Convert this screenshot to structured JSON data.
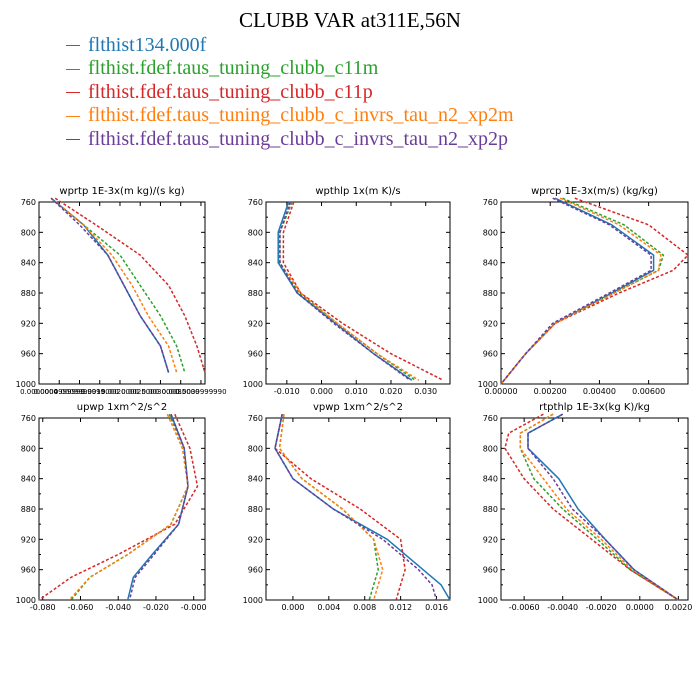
{
  "title": "CLUBB VAR at311E,56N",
  "colors": [
    "#1f77b4",
    "#2ca02c",
    "#d62728",
    "#ff7f0e",
    "#6a3d9a"
  ],
  "legend": [
    {
      "label": "flthist134.000f",
      "color": "#1f77b4"
    },
    {
      "label": "flthist.fdef.taus_tuning_clubb_c11m",
      "color": "#2ca02c"
    },
    {
      "label": "flthist.fdef.taus_tuning_clubb_c11p",
      "color": "#d62728"
    },
    {
      "label": "flthist.fdef.taus_tuning_clubb_c_invrs_tau_n2_xp2m",
      "color": "#ff7f0e"
    },
    {
      "label": "flthist.fdef.taus_tuning_clubb_c_invrs_tau_n2_xp2p",
      "color": "#6a3d9a"
    }
  ],
  "chart_data": [
    {
      "type": "line",
      "title": "wprtp  1E-3x(m kg)/(s kg)",
      "xlim": [
        0,
        0.0041
      ],
      "ylim": [
        760,
        1000
      ],
      "y_reversed": true,
      "xticks": [
        0,
        0.0005,
        0.001,
        0.0015,
        0.002,
        0.0025,
        0.003,
        0.0035,
        0.004
      ],
      "xticklabels": [
        "0.0000000",
        "0.0004999999",
        "0.0009999999",
        "0.0015000",
        "0.0020000",
        "0.0025000",
        "0.0030000",
        "0.0035000",
        "0.0039999990"
      ],
      "yticks": [
        760,
        800,
        840,
        880,
        920,
        960,
        1000
      ],
      "yticklabels": [
        "760",
        "800",
        "840",
        "880",
        "920",
        "960",
        "1000"
      ],
      "y": [
        755,
        790,
        830,
        870,
        910,
        950,
        985
      ],
      "series": [
        {
          "values": [
            0.0003,
            0.0011,
            0.0017,
            0.0021,
            0.0025,
            0.003,
            0.0032
          ]
        },
        {
          "values": [
            0.0003,
            0.0011,
            0.002,
            0.0025,
            0.003,
            0.0034,
            0.0036
          ],
          "dashed": true
        },
        {
          "values": [
            0.0004,
            0.0014,
            0.0025,
            0.0032,
            0.0036,
            0.0039,
            0.0041
          ],
          "dashed": true
        },
        {
          "values": [
            0.0003,
            0.0011,
            0.0018,
            0.0023,
            0.0027,
            0.0032,
            0.0034
          ],
          "dashed": true
        },
        {
          "values": [
            0.0003,
            0.001,
            0.0017,
            0.0021,
            0.0025,
            0.003,
            0.0032
          ],
          "dashed": true
        }
      ]
    },
    {
      "type": "line",
      "title": "wpthlp  1x(m K)/s",
      "xlim": [
        -0.016,
        0.037
      ],
      "ylim": [
        760,
        1000
      ],
      "y_reversed": true,
      "xticks": [
        -0.01,
        0,
        0.01,
        0.02,
        0.03
      ],
      "xticklabels": [
        "-0.010",
        "0.000",
        "0.010",
        "0.020",
        "0.030"
      ],
      "yticks": [
        760,
        800,
        840,
        880,
        920,
        960,
        1000
      ],
      "yticklabels": [
        "760",
        "800",
        "840",
        "880",
        "920",
        "960",
        "1000"
      ],
      "y": [
        760,
        800,
        840,
        880,
        920,
        960,
        995
      ],
      "series": [
        {
          "values": [
            -0.0095,
            -0.0125,
            -0.0125,
            -0.007,
            0.004,
            0.015,
            0.026
          ]
        },
        {
          "values": [
            -0.0085,
            -0.012,
            -0.012,
            -0.0065,
            0.0045,
            0.016,
            0.027
          ],
          "dashed": true
        },
        {
          "values": [
            -0.008,
            -0.011,
            -0.011,
            -0.006,
            0.006,
            0.02,
            0.035
          ],
          "dashed": true
        },
        {
          "values": [
            -0.009,
            -0.012,
            -0.012,
            -0.006,
            0.0045,
            0.016,
            0.028
          ],
          "dashed": true
        },
        {
          "values": [
            -0.009,
            -0.012,
            -0.012,
            -0.007,
            0.0035,
            0.015,
            0.0255
          ],
          "dashed": true
        }
      ]
    },
    {
      "type": "line",
      "title": "wprcp  1E-3x(m/s) (kg/kg)",
      "xlim": [
        0,
        0.0076
      ],
      "ylim": [
        760,
        1000
      ],
      "y_reversed": true,
      "xticks": [
        0,
        0.002,
        0.004,
        0.006
      ],
      "xticklabels": [
        "0.00000",
        "0.00200",
        "0.00400",
        "0.00600"
      ],
      "yticks": [
        760,
        800,
        840,
        880,
        920,
        960,
        1000
      ],
      "yticklabels": [
        "760",
        "800",
        "840",
        "880",
        "920",
        "960",
        "1000"
      ],
      "y": [
        755,
        790,
        830,
        850,
        880,
        920,
        960,
        1000
      ],
      "series": [
        {
          "values": [
            0.0022,
            0.0045,
            0.0062,
            0.0062,
            0.0045,
            0.0022,
            0.001,
            0.0
          ]
        },
        {
          "values": [
            0.0025,
            0.005,
            0.0066,
            0.0064,
            0.0046,
            0.0022,
            0.001,
            0.0
          ],
          "dashed": true
        },
        {
          "values": [
            0.003,
            0.006,
            0.0076,
            0.007,
            0.0048,
            0.0022,
            0.001,
            0.0
          ],
          "dashed": true
        },
        {
          "values": [
            0.0024,
            0.0048,
            0.0065,
            0.0064,
            0.0046,
            0.0022,
            0.001,
            0.0
          ],
          "dashed": true
        },
        {
          "values": [
            0.0021,
            0.0044,
            0.0061,
            0.0061,
            0.0044,
            0.0021,
            0.001,
            0.0
          ],
          "dashed": true
        }
      ]
    },
    {
      "type": "line",
      "title": "upwp  1xm^2/s^2",
      "xlim": [
        -0.082,
        0.006
      ],
      "ylim": [
        760,
        1000
      ],
      "y_reversed": true,
      "xticks": [
        -0.08,
        -0.06,
        -0.04,
        -0.02,
        0
      ],
      "xticklabels": [
        "-0.080",
        "-0.060",
        "-0.040",
        "-0.020",
        "-0.000"
      ],
      "yticks": [
        760,
        800,
        840,
        880,
        920,
        960,
        1000
      ],
      "yticklabels": [
        "760",
        "800",
        "840",
        "880",
        "920",
        "960",
        "1000"
      ],
      "y": [
        755,
        800,
        850,
        900,
        940,
        970,
        1000
      ],
      "series": [
        {
          "values": [
            -0.012,
            -0.005,
            -0.003,
            -0.008,
            -0.022,
            -0.032,
            -0.035
          ]
        },
        {
          "values": [
            -0.013,
            -0.005,
            -0.003,
            -0.012,
            -0.035,
            -0.055,
            -0.065
          ],
          "dashed": true
        },
        {
          "values": [
            -0.01,
            -0.002,
            0.002,
            -0.01,
            -0.04,
            -0.065,
            -0.082
          ],
          "dashed": true
        },
        {
          "values": [
            -0.014,
            -0.006,
            -0.003,
            -0.012,
            -0.035,
            -0.055,
            -0.066
          ],
          "dashed": true
        },
        {
          "values": [
            -0.012,
            -0.005,
            -0.003,
            -0.008,
            -0.021,
            -0.031,
            -0.034
          ],
          "dashed": true
        }
      ]
    },
    {
      "type": "line",
      "title": "vpwp  1xm^2/s^2",
      "xlim": [
        -0.003,
        0.0175
      ],
      "ylim": [
        760,
        1000
      ],
      "y_reversed": true,
      "xticks": [
        0,
        0.004,
        0.008,
        0.012,
        0.016
      ],
      "xticklabels": [
        "0.000",
        "0.004",
        "0.008",
        "0.012",
        "0.016"
      ],
      "yticks": [
        760,
        800,
        840,
        880,
        920,
        960,
        1000
      ],
      "yticklabels": [
        "760",
        "800",
        "840",
        "880",
        "920",
        "960",
        "1000"
      ],
      "y": [
        755,
        800,
        840,
        880,
        920,
        960,
        980,
        1000
      ],
      "series": [
        {
          "values": [
            -0.0012,
            -0.002,
            0.0,
            0.0045,
            0.0105,
            0.0145,
            0.0165,
            0.0175
          ]
        },
        {
          "values": [
            -0.001,
            -0.0015,
            0.001,
            0.0055,
            0.009,
            0.0095,
            0.009,
            0.0085
          ],
          "dashed": true
        },
        {
          "values": [
            -0.0012,
            -0.002,
            0.002,
            0.0075,
            0.012,
            0.0125,
            0.012,
            0.0115
          ],
          "dashed": true
        },
        {
          "values": [
            -0.001,
            -0.0015,
            0.001,
            0.0055,
            0.009,
            0.01,
            0.0095,
            0.009
          ],
          "dashed": true
        },
        {
          "values": [
            -0.0012,
            -0.002,
            0.0,
            0.0045,
            0.01,
            0.014,
            0.0155,
            0.016
          ],
          "dashed": true
        }
      ]
    },
    {
      "type": "line",
      "title": "rtpthlp  1E-3x(kg K)/kg",
      "xlim": [
        -0.0072,
        0.0025
      ],
      "ylim": [
        760,
        1000
      ],
      "y_reversed": true,
      "xticks": [
        -0.006,
        -0.004,
        -0.002,
        0,
        0.002
      ],
      "xticklabels": [
        "-0.0060",
        "-0.0040",
        "-0.0020",
        "0.0000",
        "0.0020"
      ],
      "yticks": [
        760,
        800,
        840,
        880,
        920,
        960,
        1000
      ],
      "yticklabels": [
        "760",
        "800",
        "840",
        "880",
        "920",
        "960",
        "1000"
      ],
      "y": [
        755,
        780,
        800,
        840,
        880,
        920,
        960,
        1000
      ],
      "series": [
        {
          "values": [
            -0.004,
            -0.0058,
            -0.0058,
            -0.0042,
            -0.0032,
            -0.0018,
            -0.0003,
            0.002
          ]
        },
        {
          "values": [
            -0.0045,
            -0.0062,
            -0.0062,
            -0.0055,
            -0.004,
            -0.0022,
            -0.0005,
            0.002
          ],
          "dashed": true
        },
        {
          "values": [
            -0.005,
            -0.0068,
            -0.007,
            -0.006,
            -0.0045,
            -0.0025,
            -0.0005,
            0.002
          ],
          "dashed": true
        },
        {
          "values": [
            -0.0045,
            -0.0062,
            -0.0062,
            -0.005,
            -0.0038,
            -0.002,
            -0.0004,
            0.002
          ],
          "dashed": true
        },
        {
          "values": [
            -0.004,
            -0.0058,
            -0.0058,
            -0.0045,
            -0.0035,
            -0.0018,
            -0.0003,
            0.002
          ],
          "dashed": true
        }
      ]
    }
  ]
}
